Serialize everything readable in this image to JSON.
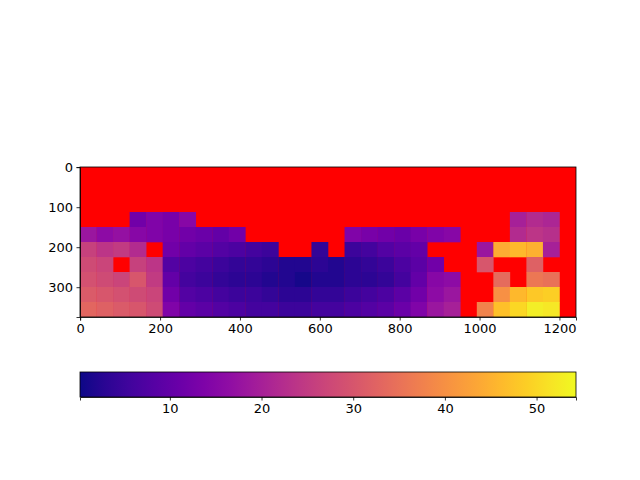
{
  "chart_data": {
    "type": "heatmap",
    "color": "plasma",
    "xlim": [
      -0.5,
      1241.5
    ],
    "ylim": [
      374.5,
      -0.5
    ],
    "xticks": [
      0,
      200,
      400,
      600,
      800,
      1000,
      1200
    ],
    "yticks": [
      0,
      100,
      200,
      300
    ],
    "colorbar_range": [
      0.2,
      54.3
    ],
    "colorbar_ticks": [
      10,
      20,
      30,
      40,
      50
    ],
    "cells": [
      [
        null,
        null,
        null,
        null,
        null,
        null,
        null,
        null,
        null,
        null,
        null,
        null,
        null,
        null,
        null,
        null,
        null,
        null,
        null,
        null,
        null,
        null,
        null,
        null,
        null,
        null,
        null,
        null,
        null,
        null
      ],
      [
        null,
        null,
        null,
        null,
        null,
        null,
        null,
        null,
        null,
        null,
        null,
        null,
        null,
        null,
        null,
        null,
        null,
        null,
        null,
        null,
        null,
        null,
        null,
        null,
        null,
        null,
        null,
        null,
        null,
        null
      ],
      [
        null,
        null,
        null,
        null,
        null,
        null,
        null,
        null,
        null,
        null,
        null,
        null,
        null,
        null,
        null,
        null,
        null,
        null,
        null,
        null,
        null,
        null,
        null,
        null,
        null,
        null,
        null,
        null,
        null,
        null
      ],
      [
        null,
        null,
        null,
        12,
        14,
        13,
        15,
        null,
        null,
        null,
        null,
        null,
        null,
        null,
        null,
        null,
        null,
        null,
        null,
        null,
        null,
        null,
        null,
        null,
        null,
        null,
        20,
        22,
        21,
        null
      ],
      [
        18,
        16,
        17,
        15,
        14,
        13,
        12,
        11,
        10,
        12,
        null,
        null,
        null,
        null,
        null,
        null,
        14,
        13,
        12,
        11,
        13,
        14,
        15,
        null,
        null,
        null,
        22,
        24,
        23,
        null
      ],
      [
        26,
        24,
        25,
        22,
        null,
        12,
        10,
        9,
        8,
        7,
        6,
        5,
        null,
        null,
        4,
        null,
        5,
        6,
        8,
        9,
        10,
        null,
        null,
        null,
        18,
        44,
        46,
        45,
        20,
        null
      ],
      [
        28,
        27,
        null,
        26,
        24,
        8,
        7,
        6,
        5,
        4,
        4,
        3,
        2,
        2,
        3,
        2,
        3,
        4,
        5,
        7,
        9,
        12,
        null,
        null,
        30,
        null,
        null,
        32,
        null,
        null
      ],
      [
        29,
        28,
        27,
        30,
        25,
        10,
        6,
        5,
        4,
        3,
        3,
        2,
        2,
        1,
        2,
        2,
        3,
        3,
        4,
        6,
        10,
        15,
        16,
        null,
        null,
        34,
        null,
        36,
        35,
        null
      ],
      [
        31,
        30,
        29,
        28,
        27,
        12,
        8,
        7,
        6,
        5,
        5,
        4,
        3,
        3,
        4,
        4,
        5,
        6,
        7,
        9,
        12,
        16,
        18,
        null,
        null,
        40,
        46,
        48,
        49,
        null
      ],
      [
        33,
        32,
        31,
        30,
        28,
        14,
        10,
        9,
        8,
        7,
        6,
        6,
        5,
        5,
        6,
        6,
        7,
        8,
        9,
        11,
        14,
        18,
        20,
        null,
        38,
        47,
        50,
        53,
        52,
        null
      ]
    ]
  }
}
